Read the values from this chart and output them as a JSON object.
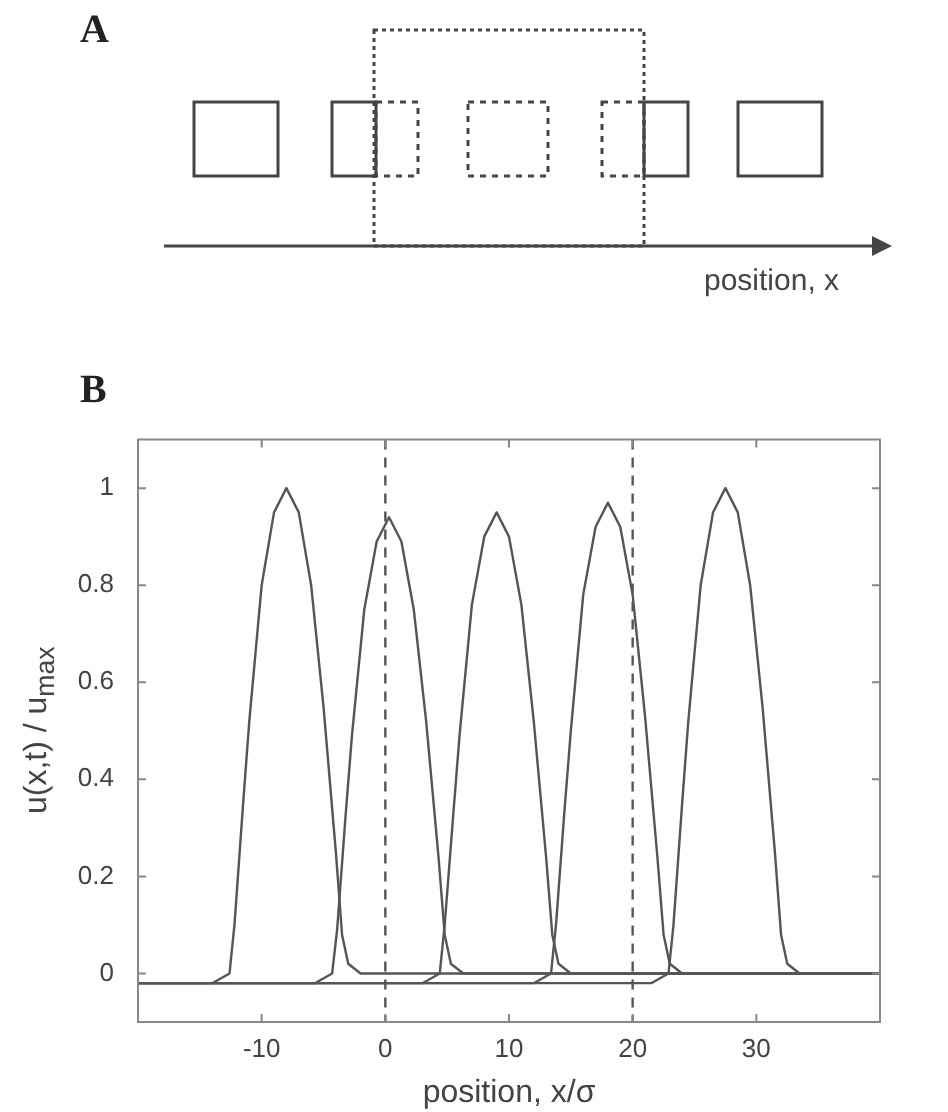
{
  "chart_data": [
    {
      "type": "other",
      "title": "A",
      "xlabel": "position, x"
    },
    {
      "type": "line",
      "title": "B",
      "xlabel": "position, x/σ",
      "ylabel": "u(x,t) / u$_{max}$",
      "xlim": [
        -20,
        40
      ],
      "ylim": [
        -0.1,
        1.1
      ],
      "xticks": [
        -10,
        0,
        10,
        20,
        30
      ],
      "yticks": [
        0,
        0.2,
        0.4,
        0.6,
        0.8,
        1
      ],
      "marker": "none",
      "line_style": "solid",
      "ref_lines": [
        {
          "axis": "x",
          "value": 0,
          "line_style": "dashed",
          "color": "#555555"
        },
        {
          "axis": "x",
          "value": 20,
          "line_style": "dashed",
          "color": "#555555"
        }
      ],
      "series": [
        {
          "color": "#555555",
          "x": [
            -20,
            -14,
            -12.6,
            -12.2,
            -11.5,
            -11,
            -10,
            -9,
            -8,
            -7,
            -6,
            -5,
            -4,
            -3.5,
            -3,
            -2,
            40
          ],
          "values": [
            -0.02,
            -0.02,
            0,
            0.1,
            0.35,
            0.52,
            0.8,
            0.95,
            1,
            0.95,
            0.8,
            0.55,
            0.25,
            0.08,
            0.02,
            0,
            0
          ]
        },
        {
          "color": "#555555",
          "x": [
            -20,
            -5.7,
            -4.3,
            -3.9,
            -3.2,
            -2.7,
            -1.7,
            -0.7,
            0.3,
            1.3,
            2.3,
            3.3,
            4.3,
            4.8,
            5.3,
            6.3,
            40
          ],
          "values": [
            -0.02,
            -0.02,
            0,
            0.09,
            0.33,
            0.49,
            0.75,
            0.89,
            0.94,
            0.89,
            0.75,
            0.52,
            0.24,
            0.08,
            0.02,
            0,
            0
          ]
        },
        {
          "color": "#555555",
          "x": [
            -20,
            3,
            4.4,
            4.8,
            5.5,
            6,
            7,
            8,
            9,
            10,
            11,
            12,
            13,
            13.5,
            14,
            15,
            40
          ],
          "values": [
            -0.02,
            -0.02,
            0,
            0.1,
            0.33,
            0.49,
            0.76,
            0.9,
            0.95,
            0.9,
            0.76,
            0.52,
            0.24,
            0.08,
            0.02,
            0,
            0
          ]
        },
        {
          "color": "#555555",
          "x": [
            -20,
            12,
            13.4,
            13.8,
            14.5,
            15,
            16,
            17,
            18,
            19,
            20,
            21,
            22,
            22.5,
            23,
            24,
            40
          ],
          "values": [
            -0.02,
            -0.02,
            0,
            0.1,
            0.34,
            0.5,
            0.78,
            0.92,
            0.97,
            0.92,
            0.78,
            0.53,
            0.24,
            0.08,
            0.02,
            0,
            0
          ]
        },
        {
          "color": "#555555",
          "x": [
            -20,
            21.5,
            22.9,
            23.3,
            24,
            24.5,
            25.5,
            26.5,
            27.5,
            28.5,
            29.5,
            30.5,
            31.5,
            32,
            32.5,
            33.5,
            40
          ],
          "values": [
            -0.02,
            -0.02,
            0,
            0.1,
            0.35,
            0.52,
            0.8,
            0.95,
            1,
            0.95,
            0.8,
            0.55,
            0.25,
            0.08,
            0.02,
            0,
            0
          ]
        }
      ]
    }
  ]
}
